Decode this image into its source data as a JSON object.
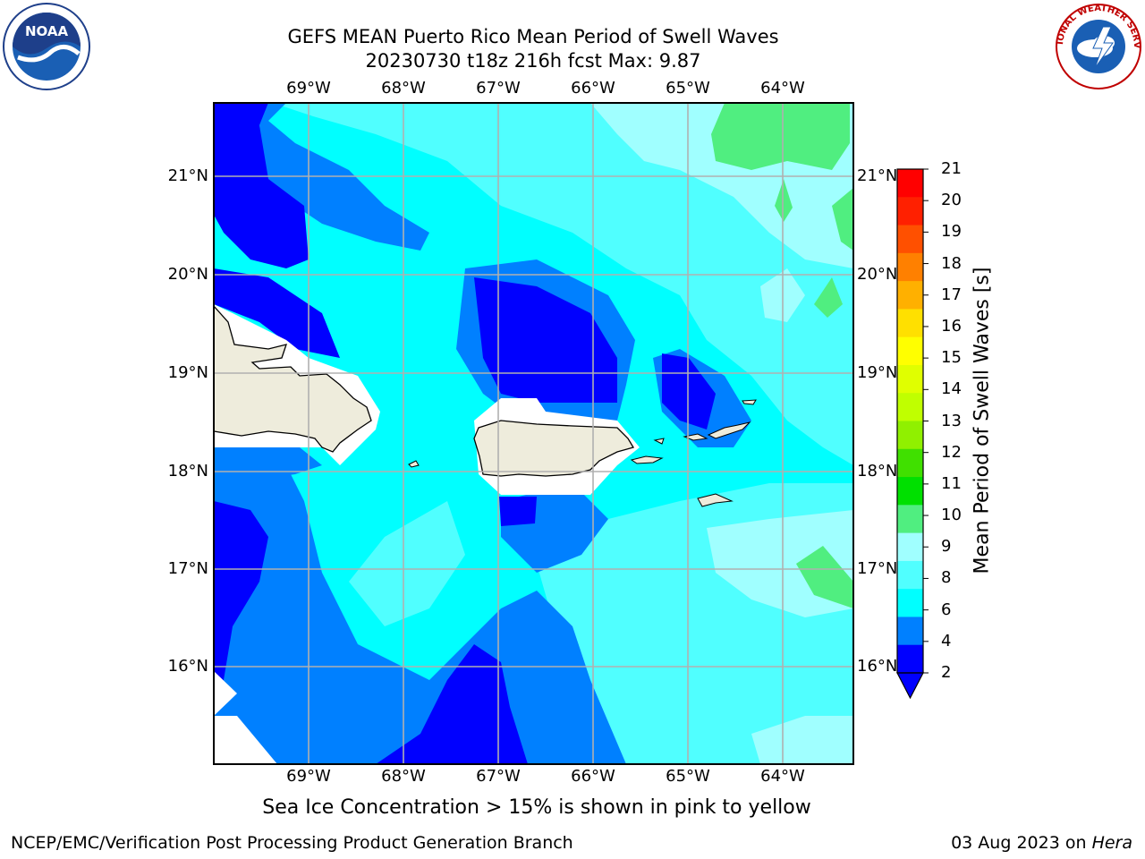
{
  "title": {
    "line1": "GEFS MEAN Puerto Rico Mean Period of Swell Waves",
    "line2": "20230730 t18z 216h fcst   Max: 9.87"
  },
  "map": {
    "lon_labels": [
      "69°W",
      "68°W",
      "67°W",
      "66°W",
      "65°W",
      "64°W"
    ],
    "lat_labels": [
      "21°N",
      "20°N",
      "19°N",
      "18°N",
      "17°N",
      "16°N"
    ],
    "gridlines": true,
    "land_color": "#eeecdc"
  },
  "colorbar": {
    "title": "Mean Period of Swell Waves [s]",
    "ticks": [
      "21",
      "20",
      "19",
      "18",
      "17",
      "16",
      "15",
      "14",
      "13",
      "12",
      "11",
      "10",
      "9",
      "8",
      "6",
      "4",
      "2"
    ],
    "colors": [
      "#ff0000",
      "#ff2000",
      "#ff5000",
      "#ff8000",
      "#ffb000",
      "#ffe000",
      "#ffff00",
      "#e0ff00",
      "#c0ff00",
      "#90f000",
      "#40e000",
      "#00e000",
      "#50ee80",
      "#a0ffff",
      "#50ffff",
      "#00ffff",
      "#0080ff",
      "#0000ff"
    ],
    "extend_arrow_color": "#0000ff"
  },
  "caption": "Sea Ice Concentration > 15% is shown in pink to yellow",
  "footer": {
    "left": "NCEP/EMC/Verification Post Processing Product Generation Branch",
    "right_date": "03 Aug 2023 on ",
    "right_machine": "Hera"
  },
  "logos": {
    "noaa": "NOAA",
    "nws": "NATIONAL WEATHER SERVICE"
  }
}
